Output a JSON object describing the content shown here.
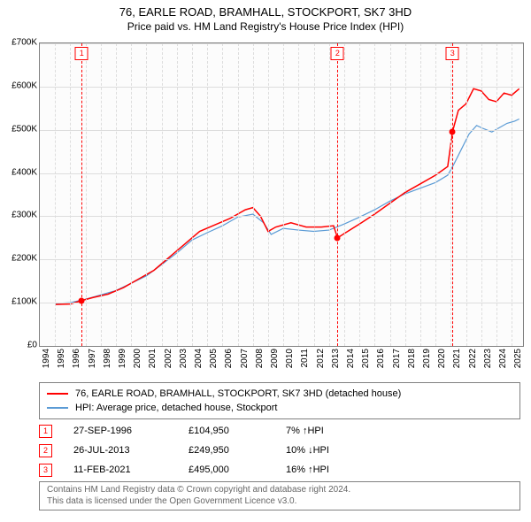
{
  "title": "76, EARLE ROAD, BRAMHALL, STOCKPORT, SK7 3HD",
  "subtitle": "Price paid vs. HM Land Registry's House Price Index (HPI)",
  "chart": {
    "type": "line",
    "background_color": "#fcfcfc",
    "border_color": "#808080",
    "grid_color": "#dddddd",
    "xlim": [
      1994,
      2025.75
    ],
    "ylim": [
      0,
      700000
    ],
    "ytick_step": 100000,
    "yticks": [
      "£0",
      "£100K",
      "£200K",
      "£300K",
      "£400K",
      "£500K",
      "£600K",
      "£700K"
    ],
    "xticks": [
      1994,
      1995,
      1996,
      1997,
      1998,
      1999,
      2000,
      2001,
      2002,
      2003,
      2004,
      2005,
      2006,
      2007,
      2008,
      2009,
      2010,
      2011,
      2012,
      2013,
      2014,
      2015,
      2016,
      2017,
      2018,
      2019,
      2020,
      2021,
      2022,
      2023,
      2024,
      2025
    ],
    "label_fontsize": 10,
    "title_fontsize": 13,
    "series": [
      {
        "name": "price_paid",
        "color": "#ff0000",
        "line_width": 1.5,
        "points": [
          [
            1995.0,
            96000
          ],
          [
            1996.0,
            97000
          ],
          [
            1996.75,
            104950
          ],
          [
            1997.5,
            112000
          ],
          [
            1998.5,
            120000
          ],
          [
            1999.5,
            135000
          ],
          [
            2000.5,
            155000
          ],
          [
            2001.5,
            175000
          ],
          [
            2002.5,
            205000
          ],
          [
            2003.5,
            235000
          ],
          [
            2004.5,
            265000
          ],
          [
            2005.5,
            280000
          ],
          [
            2006.5,
            295000
          ],
          [
            2007.5,
            315000
          ],
          [
            2008.0,
            320000
          ],
          [
            2008.5,
            300000
          ],
          [
            2009.0,
            265000
          ],
          [
            2009.5,
            275000
          ],
          [
            2010.5,
            285000
          ],
          [
            2011.5,
            275000
          ],
          [
            2012.5,
            275000
          ],
          [
            2013.3,
            278000
          ],
          [
            2013.56,
            249950
          ],
          [
            2014.0,
            260000
          ],
          [
            2015.0,
            282000
          ],
          [
            2016.0,
            305000
          ],
          [
            2017.0,
            330000
          ],
          [
            2018.0,
            355000
          ],
          [
            2019.0,
            375000
          ],
          [
            2020.0,
            395000
          ],
          [
            2020.8,
            415000
          ],
          [
            2021.11,
            495000
          ],
          [
            2021.5,
            545000
          ],
          [
            2022.0,
            560000
          ],
          [
            2022.5,
            595000
          ],
          [
            2023.0,
            590000
          ],
          [
            2023.5,
            570000
          ],
          [
            2024.0,
            565000
          ],
          [
            2024.5,
            585000
          ],
          [
            2025.0,
            580000
          ],
          [
            2025.5,
            595000
          ]
        ]
      },
      {
        "name": "hpi",
        "color": "#5b9bd5",
        "line_width": 1.2,
        "points": [
          [
            1995.0,
            98000
          ],
          [
            1996.0,
            100000
          ],
          [
            1997.0,
            108000
          ],
          [
            1998.0,
            118000
          ],
          [
            1999.0,
            128000
          ],
          [
            2000.0,
            145000
          ],
          [
            2001.0,
            162000
          ],
          [
            2002.0,
            188000
          ],
          [
            2003.0,
            215000
          ],
          [
            2004.0,
            245000
          ],
          [
            2005.0,
            262000
          ],
          [
            2006.0,
            278000
          ],
          [
            2007.0,
            298000
          ],
          [
            2008.0,
            305000
          ],
          [
            2008.7,
            285000
          ],
          [
            2009.2,
            258000
          ],
          [
            2010.0,
            272000
          ],
          [
            2011.0,
            268000
          ],
          [
            2012.0,
            265000
          ],
          [
            2013.0,
            268000
          ],
          [
            2014.0,
            282000
          ],
          [
            2015.0,
            298000
          ],
          [
            2016.0,
            315000
          ],
          [
            2017.0,
            335000
          ],
          [
            2018.0,
            352000
          ],
          [
            2019.0,
            365000
          ],
          [
            2020.0,
            378000
          ],
          [
            2020.8,
            395000
          ],
          [
            2021.2,
            420000
          ],
          [
            2021.7,
            455000
          ],
          [
            2022.2,
            490000
          ],
          [
            2022.7,
            510000
          ],
          [
            2023.2,
            502000
          ],
          [
            2023.7,
            495000
          ],
          [
            2024.2,
            505000
          ],
          [
            2024.7,
            515000
          ],
          [
            2025.2,
            520000
          ],
          [
            2025.5,
            525000
          ]
        ]
      }
    ],
    "markers": [
      {
        "n": "1",
        "x": 1996.75,
        "y": 104950,
        "color": "#ff0000"
      },
      {
        "n": "2",
        "x": 2013.56,
        "y": 249950,
        "color": "#ff0000"
      },
      {
        "n": "3",
        "x": 2021.11,
        "y": 495000,
        "color": "#ff0000"
      }
    ]
  },
  "legend": {
    "items": [
      {
        "color": "#ff0000",
        "label": "76, EARLE ROAD, BRAMHALL, STOCKPORT, SK7 3HD (detached house)"
      },
      {
        "color": "#5b9bd5",
        "label": "HPI: Average price, detached house, Stockport"
      }
    ]
  },
  "sales": [
    {
      "n": "1",
      "date": "27-SEP-1996",
      "price": "£104,950",
      "delta_pct": "7%",
      "direction": "up",
      "suffix": "HPI"
    },
    {
      "n": "2",
      "date": "26-JUL-2013",
      "price": "£249,950",
      "delta_pct": "10%",
      "direction": "down",
      "suffix": "HPI"
    },
    {
      "n": "3",
      "date": "11-FEB-2021",
      "price": "£495,000",
      "delta_pct": "16%",
      "direction": "up",
      "suffix": "HPI"
    }
  ],
  "footer": {
    "line1": "Contains HM Land Registry data © Crown copyright and database right 2024.",
    "line2": "This data is licensed under the Open Government Licence v3.0."
  }
}
